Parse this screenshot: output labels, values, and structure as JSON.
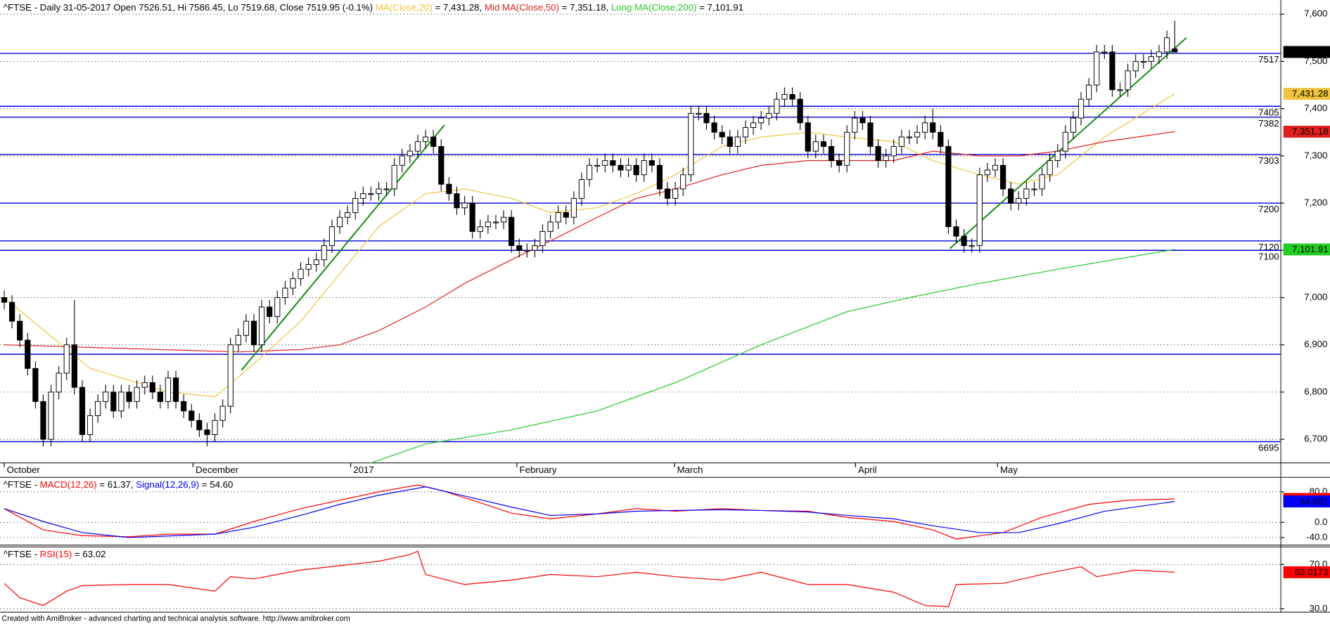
{
  "chart_data": [
    {
      "type": "candlestick",
      "title": "^FTSE - Daily 31-05-2017 Open 7526.51, Hi 7586.45, Lo 7519.68, Close 7519.95 (-0.1%) ",
      "up_color": "#ffffff",
      "down_color": "#000000",
      "open": [
        7000,
        6990,
        6950,
        6910,
        6850,
        6780,
        6700,
        6800,
        6840,
        6900,
        6810,
        6710,
        6750,
        6780,
        6800,
        6760,
        6800,
        6780,
        6810,
        6820,
        6800,
        6780,
        6830,
        6780,
        6760,
        6740,
        6720,
        6710,
        6740,
        6770,
        6900,
        6920,
        6950,
        6900,
        6980,
        6960,
        7000,
        7020,
        7040,
        7060,
        7070,
        7080,
        7110,
        7150,
        7170,
        7180,
        7210,
        7220,
        7220,
        7230,
        7230,
        7280,
        7300,
        7310,
        7330,
        7340,
        7320,
        7240,
        7220,
        7190,
        7200,
        7140,
        7150,
        7160,
        7160,
        7170,
        7110,
        7100,
        7100,
        7110,
        7140,
        7160,
        7180,
        7170,
        7210,
        7250,
        7280,
        7280,
        7290,
        7280,
        7270,
        7280,
        7260,
        7290,
        7280,
        7230,
        7210,
        7230,
        7260,
        7390,
        7390,
        7370,
        7350,
        7340,
        7320,
        7340,
        7360,
        7370,
        7380,
        7390,
        7420,
        7430,
        7420,
        7370,
        7310,
        7330,
        7320,
        7290,
        7280,
        7350,
        7380,
        7370,
        7320,
        7290,
        7300,
        7320,
        7340,
        7340,
        7350,
        7370,
        7350,
        7320,
        7150,
        7130,
        7110,
        7110,
        7260,
        7270,
        7280,
        7230,
        7200,
        7210,
        7230,
        7230,
        7260,
        7290,
        7310,
        7350,
        7380,
        7420,
        7450,
        7520,
        7520,
        7440,
        7440,
        7480,
        7500,
        7500,
        7510,
        7520,
        7526.51
      ],
      "high": [
        7015,
        7005,
        6965,
        6925,
        6865,
        6795,
        6815,
        6855,
        6915,
        6995,
        6825,
        6765,
        6795,
        6815,
        6815,
        6815,
        6815,
        6825,
        6835,
        6835,
        6815,
        6845,
        6845,
        6795,
        6775,
        6755,
        6735,
        6755,
        6785,
        6915,
        6935,
        6965,
        6965,
        6995,
        6995,
        7015,
        7035,
        7055,
        7075,
        7085,
        7095,
        7125,
        7165,
        7185,
        7195,
        7225,
        7235,
        7235,
        7245,
        7245,
        7295,
        7315,
        7325,
        7345,
        7355,
        7355,
        7335,
        7255,
        7235,
        7215,
        7215,
        7165,
        7175,
        7175,
        7185,
        7185,
        7125,
        7115,
        7125,
        7155,
        7175,
        7195,
        7195,
        7225,
        7265,
        7295,
        7295,
        7305,
        7305,
        7295,
        7295,
        7295,
        7305,
        7305,
        7295,
        7245,
        7245,
        7275,
        7405,
        7405,
        7405,
        7385,
        7365,
        7355,
        7355,
        7375,
        7385,
        7395,
        7405,
        7435,
        7445,
        7445,
        7435,
        7385,
        7345,
        7345,
        7335,
        7305,
        7365,
        7395,
        7395,
        7385,
        7335,
        7315,
        7335,
        7355,
        7355,
        7365,
        7385,
        7400,
        7365,
        7335,
        7165,
        7145,
        7125,
        7275,
        7285,
        7295,
        7295,
        7245,
        7225,
        7245,
        7245,
        7275,
        7305,
        7325,
        7365,
        7395,
        7435,
        7465,
        7535,
        7535,
        7535,
        7455,
        7495,
        7515,
        7515,
        7525,
        7535,
        7565,
        7586.45
      ],
      "low": [
        6975,
        6935,
        6895,
        6835,
        6765,
        6685,
        6685,
        6785,
        6825,
        6795,
        6695,
        6695,
        6735,
        6765,
        6745,
        6745,
        6765,
        6765,
        6795,
        6785,
        6765,
        6765,
        6765,
        6745,
        6725,
        6705,
        6685,
        6695,
        6725,
        6755,
        6885,
        6905,
        6885,
        6885,
        6945,
        6945,
        6985,
        7005,
        7025,
        7045,
        7055,
        7065,
        7095,
        7135,
        7155,
        7165,
        7195,
        7205,
        7205,
        7215,
        7215,
        7265,
        7285,
        7295,
        7315,
        7305,
        7225,
        7205,
        7175,
        7175,
        7125,
        7125,
        7135,
        7145,
        7145,
        7095,
        7085,
        7085,
        7085,
        7095,
        7125,
        7145,
        7155,
        7155,
        7195,
        7235,
        7265,
        7265,
        7265,
        7255,
        7255,
        7245,
        7245,
        7265,
        7215,
        7195,
        7195,
        7215,
        7245,
        7375,
        7355,
        7335,
        7325,
        7305,
        7305,
        7325,
        7345,
        7355,
        7365,
        7375,
        7405,
        7405,
        7355,
        7295,
        7295,
        7305,
        7275,
        7265,
        7265,
        7335,
        7355,
        7305,
        7275,
        7275,
        7285,
        7305,
        7325,
        7325,
        7335,
        7335,
        7305,
        7135,
        7115,
        7095,
        7095,
        7095,
        7245,
        7255,
        7215,
        7185,
        7185,
        7195,
        7215,
        7215,
        7245,
        7275,
        7295,
        7335,
        7365,
        7405,
        7435,
        7505,
        7425,
        7425,
        7425,
        7465,
        7485,
        7485,
        7495,
        7505,
        7519.68
      ],
      "close": [
        6990,
        6950,
        6910,
        6850,
        6780,
        6700,
        6800,
        6840,
        6900,
        6810,
        6710,
        6750,
        6780,
        6800,
        6760,
        6800,
        6780,
        6810,
        6820,
        6800,
        6780,
        6830,
        6780,
        6760,
        6740,
        6720,
        6710,
        6740,
        6770,
        6900,
        6920,
        6950,
        6900,
        6980,
        6960,
        7000,
        7020,
        7040,
        7060,
        7070,
        7080,
        7110,
        7150,
        7170,
        7180,
        7210,
        7220,
        7220,
        7230,
        7230,
        7280,
        7300,
        7310,
        7330,
        7340,
        7320,
        7240,
        7220,
        7190,
        7200,
        7140,
        7150,
        7160,
        7160,
        7170,
        7110,
        7100,
        7100,
        7110,
        7140,
        7160,
        7180,
        7170,
        7210,
        7250,
        7280,
        7280,
        7290,
        7280,
        7270,
        7280,
        7260,
        7290,
        7280,
        7230,
        7210,
        7230,
        7260,
        7390,
        7390,
        7370,
        7350,
        7340,
        7320,
        7340,
        7360,
        7370,
        7380,
        7390,
        7420,
        7430,
        7420,
        7370,
        7310,
        7330,
        7320,
        7290,
        7280,
        7350,
        7380,
        7370,
        7320,
        7290,
        7300,
        7320,
        7340,
        7340,
        7350,
        7370,
        7350,
        7320,
        7150,
        7130,
        7110,
        7110,
        7260,
        7270,
        7280,
        7230,
        7200,
        7210,
        7230,
        7230,
        7260,
        7290,
        7310,
        7350,
        7380,
        7420,
        7450,
        7520,
        7520,
        7440,
        7440,
        7480,
        7500,
        7500,
        7510,
        7520,
        7550,
        7519.95
      ],
      "close_label": "7,519.95",
      "series": [
        {
          "name": "MA(Close,20)",
          "value_text": " = 7,431.28, ",
          "color": "#eec43a",
          "last_label": "7,431.28",
          "x": [
            0,
            11,
            21,
            27,
            32,
            38,
            43,
            48,
            54,
            59,
            65,
            70,
            76,
            81,
            86,
            92,
            97,
            103,
            108,
            114,
            119,
            125,
            130,
            135,
            141,
            150
          ],
          "values": [
            7000,
            6850,
            6800,
            6790,
            6860,
            6950,
            7050,
            7150,
            7220,
            7230,
            7210,
            7180,
            7190,
            7220,
            7260,
            7320,
            7340,
            7350,
            7340,
            7330,
            7290,
            7260,
            7240,
            7260,
            7340,
            7431.28
          ]
        },
        {
          "name": "Mid MA(Close,50)",
          "value_text": " = 7,351.18, ",
          "color": "#e0201e",
          "last_label": "7,351.18",
          "x": [
            0,
            10,
            20,
            30,
            38,
            43,
            48,
            54,
            59,
            65,
            70,
            76,
            81,
            86,
            92,
            97,
            103,
            108,
            114,
            119,
            125,
            130,
            135,
            141,
            150
          ],
          "values": [
            6900,
            6895,
            6890,
            6885,
            6890,
            6900,
            6930,
            6980,
            7030,
            7080,
            7120,
            7170,
            7210,
            7230,
            7260,
            7280,
            7290,
            7290,
            7290,
            7310,
            7300,
            7300,
            7310,
            7330,
            7351.18
          ]
        },
        {
          "name": "Long MA(Close,200)",
          "value_text": " = 7,101.91",
          "color": "#22cc22",
          "last_label": "7,101.91",
          "x": [
            47,
            54,
            65,
            76,
            86,
            97,
            108,
            116,
            125,
            135,
            150
          ],
          "values": [
            6650,
            6690,
            6720,
            6760,
            6820,
            6900,
            6970,
            7000,
            7030,
            7060,
            7101.91
          ]
        }
      ],
      "levels": {
        "color": "#0000dd",
        "values": [
          7517,
          7405,
          7382,
          7303,
          7200,
          7120,
          7100,
          6695
        ]
      },
      "unlabeled_levels": [
        6880
      ],
      "trendline_color": "#0a8a0a",
      "trendlines": [
        {
          "x": [
            30.4,
            56.4
          ],
          "values": [
            6846,
            7365
          ]
        },
        {
          "x": [
            121.2,
            151.5
          ],
          "values": [
            7104,
            7550
          ]
        }
      ],
      "xlim": [
        -0.54,
        163.6
      ],
      "ylim": [
        6650,
        7630
      ],
      "xticks": [
        {
          "value": 0,
          "label": "October"
        },
        {
          "value": 24.2,
          "label": "December"
        },
        {
          "value": 44.4,
          "label": "2017"
        },
        {
          "value": 65.7,
          "label": "February"
        },
        {
          "value": 85.9,
          "label": "March"
        },
        {
          "value": 109.1,
          "label": "April"
        },
        {
          "value": 127.3,
          "label": "May"
        }
      ],
      "yticks": [
        {
          "value": 7600,
          "label": "7,600"
        },
        {
          "value": 7500,
          "label": "7,500"
        },
        {
          "value": 7400,
          "label": "7,400"
        },
        {
          "value": 7300,
          "label": "7,300"
        },
        {
          "value": 7200,
          "label": "7,200"
        },
        {
          "value": 7100,
          "label": "7,100"
        },
        {
          "value": 7000,
          "label": "7,000"
        },
        {
          "value": 6900,
          "label": "6,900"
        },
        {
          "value": 6800,
          "label": "6,800"
        },
        {
          "value": 6700,
          "label": "6,700"
        }
      ],
      "grid": true
    },
    {
      "type": "line",
      "title": "^FTSE - ",
      "series": [
        {
          "name": "MACD(12,26)",
          "value_text": " = 61.37, ",
          "color": "#ff0000",
          "x": [
            0,
            5,
            10,
            16,
            21,
            27,
            32,
            38,
            43,
            48,
            53,
            56,
            60,
            65,
            70,
            76,
            81,
            86,
            92,
            97,
            103,
            108,
            114,
            119,
            122,
            128,
            133,
            139,
            144,
            150
          ],
          "values": [
            36,
            -20,
            -35,
            -38,
            -31,
            -31,
            2,
            36,
            58,
            80,
            98,
            84,
            58,
            24,
            9,
            22,
            36,
            29,
            36,
            31,
            29,
            13,
            2,
            -20,
            -44,
            -27,
            13,
            47,
            58,
            61.3712
          ]
        },
        {
          "name": "Signal(12,26,9)",
          "value_text": " = 54.60",
          "color": "#0000ff",
          "x": [
            0,
            5,
            10,
            16,
            21,
            27,
            32,
            38,
            43,
            48,
            54,
            59,
            65,
            70,
            76,
            81,
            86,
            92,
            97,
            103,
            108,
            114,
            119,
            125,
            130,
            135,
            141,
            150
          ],
          "values": [
            36,
            2,
            -27,
            -40,
            -36,
            -31,
            -13,
            18,
            47,
            71,
            93,
            69,
            40,
            18,
            22,
            29,
            31,
            33,
            31,
            27,
            18,
            9,
            -9,
            -27,
            -27,
            -4,
            29,
            54.601
          ]
        }
      ],
      "xlim": [
        -0.54,
        163.6
      ],
      "ylim": [
        -60,
        118
      ],
      "yticks": [
        {
          "value": 80,
          "label": "80.0"
        },
        {
          "value": 0,
          "label": "0.0"
        },
        {
          "value": -40,
          "label": "-40.0"
        }
      ],
      "grid": true
    },
    {
      "type": "line",
      "title": "^FTSE - ",
      "series": [
        {
          "name": "RSI(15)",
          "value_text": " = 63.02",
          "color": "#ff0000",
          "x": [
            0,
            2,
            5,
            8,
            10,
            16,
            21,
            27,
            29,
            32,
            38,
            43,
            48,
            52,
            53,
            54,
            59,
            65,
            70,
            76,
            81,
            86,
            92,
            97,
            103,
            108,
            114,
            118,
            121,
            122,
            128,
            133,
            138,
            140,
            145,
            150
          ],
          "values": [
            53,
            40,
            33,
            46,
            51,
            52,
            52,
            46,
            59,
            57,
            65,
            69,
            73,
            79,
            82,
            61,
            52,
            56,
            61,
            59,
            63,
            59,
            56,
            63,
            52,
            52,
            45,
            33,
            32,
            52,
            53,
            61,
            68,
            59,
            65,
            63.0173
          ]
        }
      ],
      "xlim": [
        -0.54,
        163.6
      ],
      "ylim": [
        27,
        86
      ],
      "yticks": [
        {
          "value": 70,
          "label": "70.0"
        },
        {
          "value": 30,
          "label": "30.0"
        }
      ],
      "grid": true
    }
  ],
  "footer": "Created with AmiBroker - advanced charting and technical analysis software. http://www.amibroker.com"
}
